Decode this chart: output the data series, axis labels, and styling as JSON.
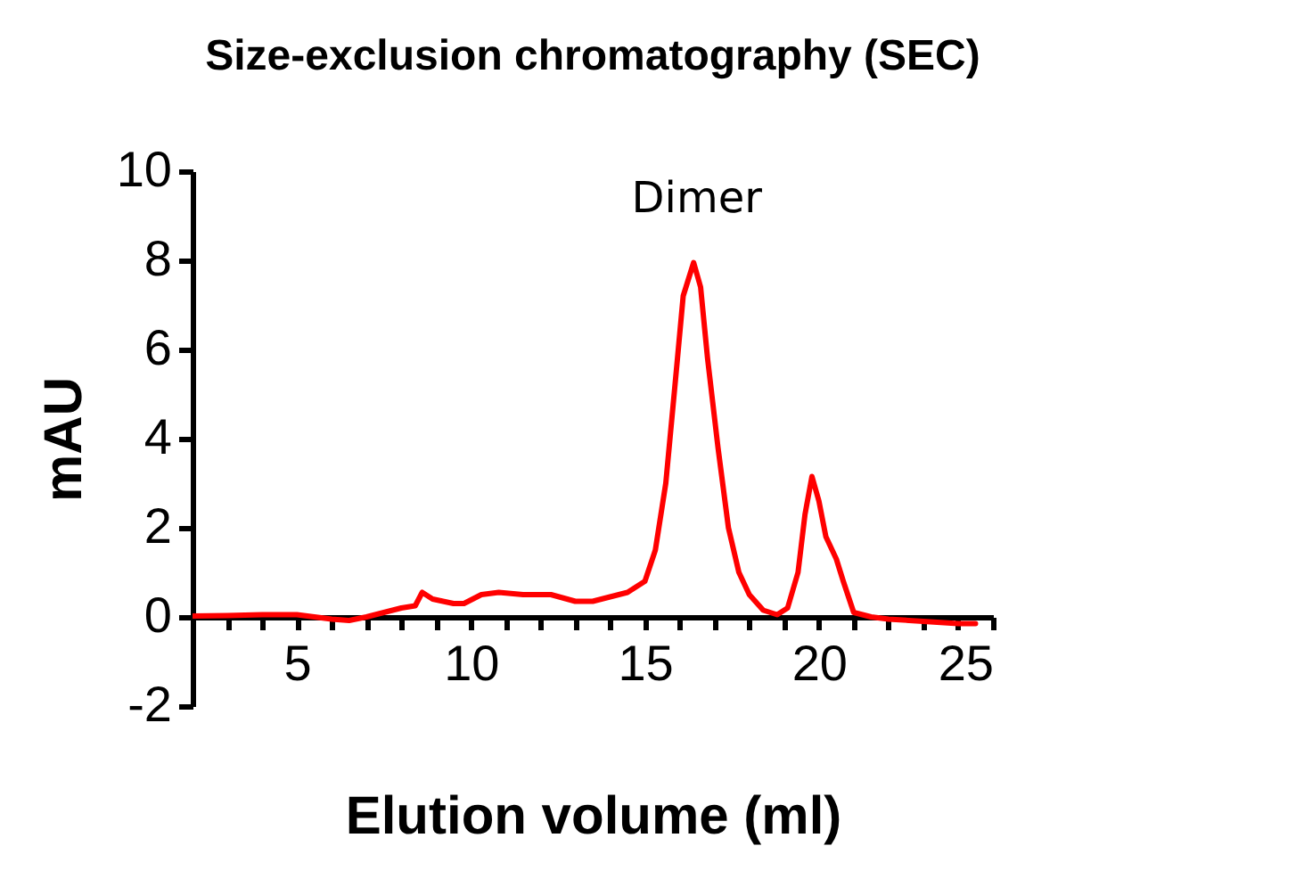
{
  "chart_data": {
    "type": "line",
    "title": "Size-exclusion chromatography (SEC)",
    "xlabel": "Elution volume (ml)",
    "ylabel": "mAU",
    "x": [
      2,
      3,
      4,
      5,
      6,
      6.5,
      7,
      7.5,
      8,
      8.4,
      8.6,
      8.9,
      9.5,
      9.8,
      10.3,
      10.8,
      11.5,
      12.3,
      13,
      13.5,
      14,
      14.5,
      15,
      15.3,
      15.6,
      15.9,
      16.1,
      16.4,
      16.6,
      16.8,
      17.1,
      17.4,
      17.7,
      18,
      18.4,
      18.8,
      19.1,
      19.4,
      19.6,
      19.8,
      20,
      20.2,
      20.5,
      20.7,
      21,
      21.5,
      22,
      23,
      24,
      24.5
    ],
    "series": [
      {
        "color": "#ff0000",
        "values": [
          0.02,
          0.03,
          0.05,
          0.05,
          -0.05,
          -0.08,
          0,
          0.1,
          0.2,
          0.25,
          0.55,
          0.4,
          0.3,
          0.3,
          0.5,
          0.55,
          0.5,
          0.5,
          0.35,
          0.35,
          0.45,
          0.55,
          0.8,
          1.5,
          3,
          5.5,
          7.2,
          7.95,
          7.4,
          5.8,
          3.8,
          2.0,
          1.0,
          0.5,
          0.15,
          0.05,
          0.2,
          1.0,
          2.3,
          3.15,
          2.6,
          1.8,
          1.3,
          0.8,
          0.1,
          0,
          -0.05,
          -0.1,
          -0.15,
          -0.15
        ]
      }
    ],
    "xlim": [
      2,
      25
    ],
    "xticks": [
      {
        "value": 3,
        "label": null
      },
      {
        "value": 4,
        "label": null
      },
      5,
      {
        "value": 6,
        "label": null
      },
      {
        "value": 7,
        "label": null
      },
      {
        "value": 8,
        "label": null
      },
      {
        "value": 9,
        "label": null
      },
      10,
      {
        "value": 11,
        "label": null
      },
      {
        "value": 12,
        "label": null
      },
      {
        "value": 13,
        "label": null
      },
      {
        "value": 14,
        "label": null
      },
      15,
      {
        "value": 16,
        "label": null
      },
      {
        "value": 17,
        "label": null
      },
      {
        "value": 18,
        "label": null
      },
      {
        "value": 19,
        "label": null
      },
      20,
      {
        "value": 21,
        "label": null
      },
      {
        "value": 22,
        "label": null
      },
      {
        "value": 23,
        "label": null
      },
      {
        "value": 24,
        "label": null
      },
      25
    ],
    "ylim": [
      -2,
      10
    ],
    "yticks": [
      -2,
      0,
      2,
      4,
      6,
      8,
      10
    ],
    "annotations": [
      "Dimer"
    ],
    "grid": false,
    "marker": "none",
    "line_style": "solid"
  }
}
